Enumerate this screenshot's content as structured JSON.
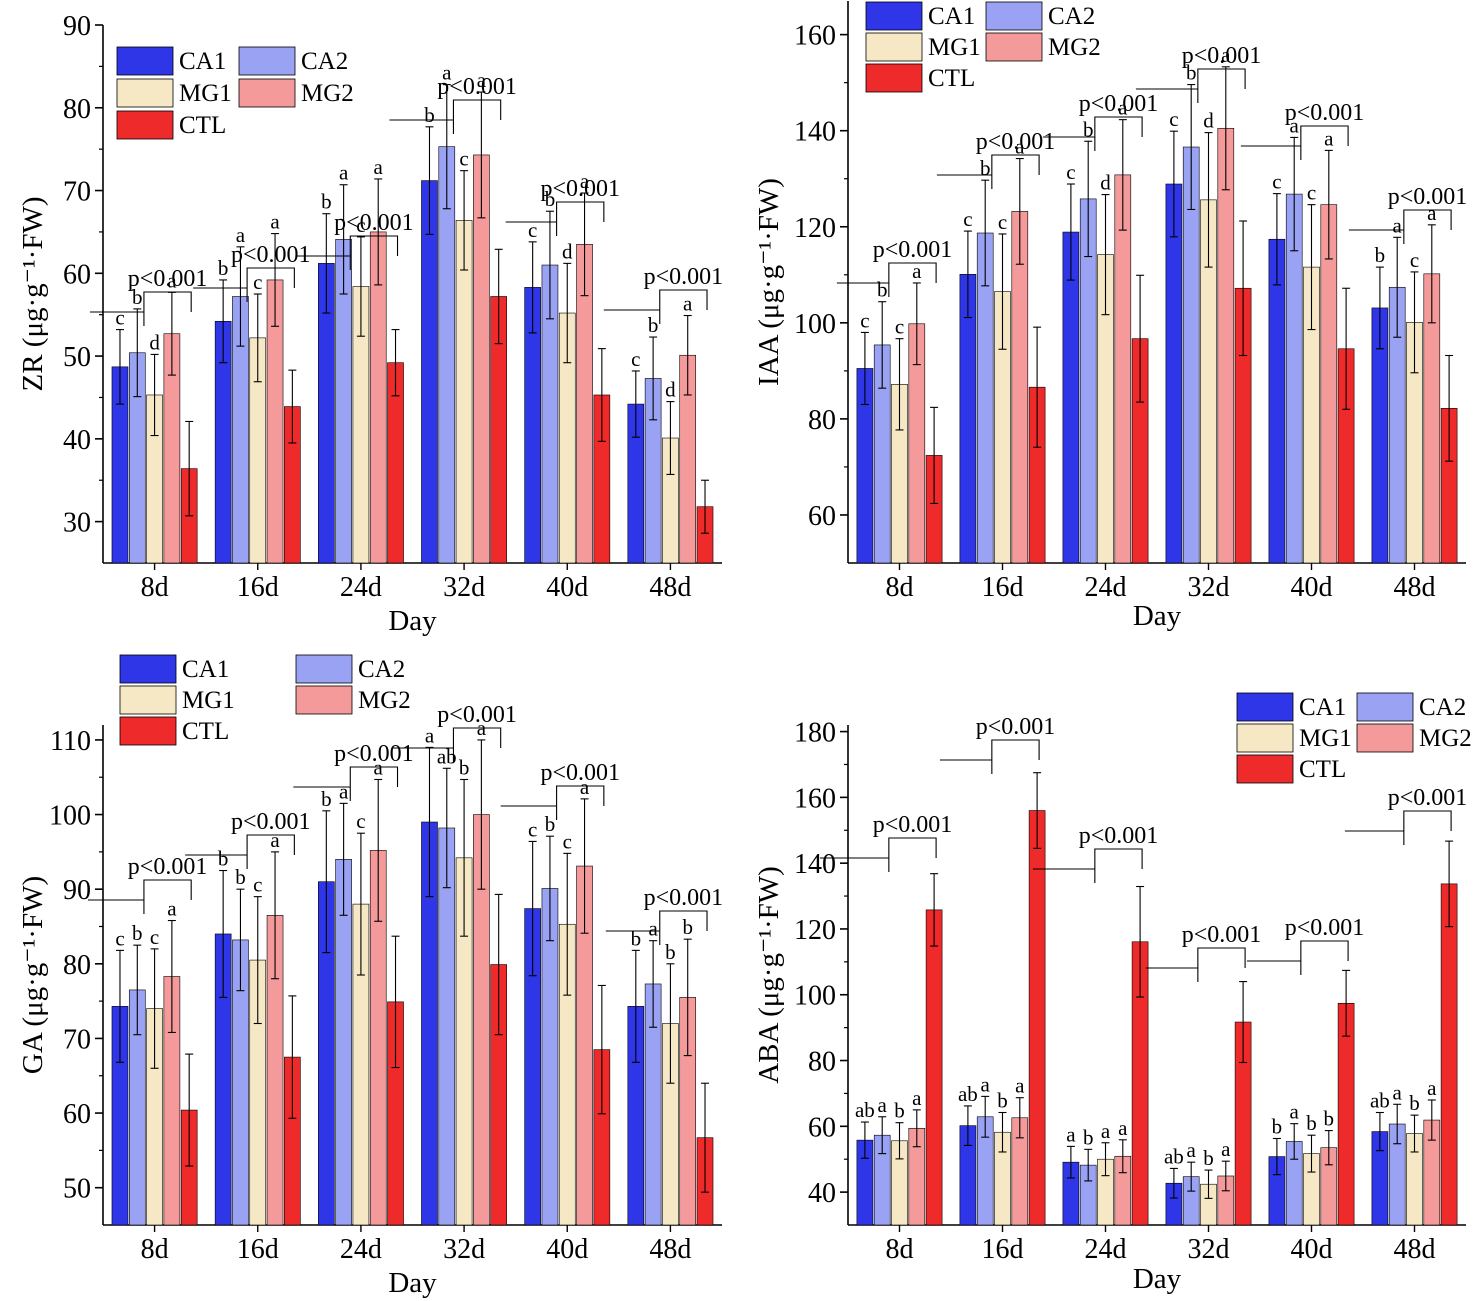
{
  "colors": {
    "CA1": "#2e36e8",
    "CA2": "#9aa2f4",
    "MG1": "#f6e8c4",
    "MG2": "#f49a9a",
    "CTL": "#ee2a2a"
  },
  "chart_data": [
    {
      "type": "bar",
      "ylabel": "ZR (μg·g⁻¹·FW)",
      "xlabel": "Day",
      "categories": [
        "8d",
        "16d",
        "24d",
        "32d",
        "40d",
        "48d"
      ],
      "ylim": [
        25,
        90
      ],
      "yticks": [
        30,
        40,
        50,
        60,
        70,
        80,
        90
      ],
      "legend": [
        "CA1",
        "CA2",
        "MG1",
        "MG2",
        "CTL"
      ],
      "series": [
        {
          "name": "CA1",
          "values": [
            48.7,
            54.2,
            61.2,
            71.2,
            58.3,
            44.2
          ],
          "errors": [
            4.5,
            5.0,
            6.0,
            6.5,
            5.5,
            4.0
          ],
          "labels": [
            "c",
            "b",
            "b",
            "b",
            "c",
            "c"
          ]
        },
        {
          "name": "CA2",
          "values": [
            50.4,
            57.2,
            64.1,
            75.3,
            61.0,
            47.3
          ],
          "errors": [
            5.3,
            6.0,
            6.6,
            7.5,
            6.5,
            5.0
          ],
          "labels": [
            "b",
            "a",
            "a",
            "a",
            "b",
            "b"
          ]
        },
        {
          "name": "MG1",
          "values": [
            45.3,
            52.2,
            58.4,
            66.4,
            55.2,
            40.1
          ],
          "errors": [
            4.9,
            5.3,
            6.0,
            6.0,
            6.0,
            4.4
          ],
          "labels": [
            "d",
            "c",
            "c",
            "c",
            "d",
            "d"
          ]
        },
        {
          "name": "MG2",
          "values": [
            52.7,
            59.2,
            65.0,
            74.3,
            63.5,
            50.1
          ],
          "errors": [
            5.0,
            5.6,
            6.4,
            7.6,
            6.2,
            4.8
          ],
          "labels": [
            "a",
            "a",
            "a",
            "a",
            "a",
            "a"
          ]
        },
        {
          "name": "CTL",
          "values": [
            36.4,
            43.9,
            49.2,
            57.2,
            45.3,
            31.8
          ],
          "errors": [
            5.7,
            4.4,
            4.0,
            5.7,
            5.6,
            3.2
          ],
          "labels": [
            "",
            "",
            "",
            "",
            "",
            ""
          ]
        }
      ],
      "pvalue": "p<0.001"
    },
    {
      "type": "bar",
      "ylabel": "IAA (μg·g⁻¹·FW)",
      "xlabel": "Day",
      "categories": [
        "8d",
        "16d",
        "24d",
        "32d",
        "40d",
        "48d"
      ],
      "ylim": [
        50,
        167
      ],
      "yticks": [
        60,
        80,
        100,
        120,
        140,
        160
      ],
      "legend": [
        "CA1",
        "CA2",
        "MG1",
        "MG2",
        "CTL"
      ],
      "series": [
        {
          "name": "CA1",
          "values": [
            90.5,
            110.1,
            118.9,
            128.9,
            117.4,
            103.1
          ],
          "errors": [
            7.5,
            9.0,
            10.0,
            11.0,
            9.5,
            8.5
          ],
          "labels": [
            "c",
            "c",
            "c",
            "c",
            "c",
            "b"
          ]
        },
        {
          "name": "CA2",
          "values": [
            95.4,
            118.7,
            125.8,
            136.6,
            126.8,
            107.4
          ],
          "errors": [
            9.0,
            11.0,
            12.0,
            13.0,
            11.8,
            10.4
          ],
          "labels": [
            "b",
            "b",
            "b",
            "b",
            "a",
            "a"
          ]
        },
        {
          "name": "MG1",
          "values": [
            87.2,
            106.5,
            114.2,
            125.6,
            111.6,
            100.1
          ],
          "errors": [
            9.5,
            12.0,
            12.5,
            14.0,
            13.0,
            10.5
          ],
          "labels": [
            "c",
            "c",
            "d",
            "d",
            "c",
            "c"
          ]
        },
        {
          "name": "MG2",
          "values": [
            99.8,
            123.2,
            130.8,
            140.5,
            124.6,
            110.2
          ],
          "errors": [
            8.5,
            11.0,
            11.5,
            12.8,
            11.3,
            10.2
          ],
          "labels": [
            "a",
            "a",
            "a",
            "a",
            "a",
            "a"
          ]
        },
        {
          "name": "CTL",
          "values": [
            72.4,
            86.6,
            96.7,
            107.2,
            94.6,
            82.2
          ],
          "errors": [
            10.0,
            12.5,
            13.2,
            14.0,
            12.6,
            11.0
          ],
          "labels": [
            "",
            "",
            "",
            "",
            "",
            ""
          ]
        }
      ],
      "pvalue": "p<0.001"
    },
    {
      "type": "bar",
      "ylabel": "GA (μg·g⁻¹·FW)",
      "xlabel": "Day",
      "categories": [
        "8d",
        "16d",
        "24d",
        "32d",
        "40d",
        "48d"
      ],
      "ylim": [
        45,
        112
      ],
      "yticks": [
        50,
        60,
        70,
        80,
        90,
        100,
        110
      ],
      "legend": [
        "CA1",
        "CA2",
        "MG1",
        "MG2",
        "CTL"
      ],
      "series": [
        {
          "name": "CA1",
          "values": [
            74.3,
            84.0,
            91.0,
            99.0,
            87.4,
            74.3
          ],
          "errors": [
            7.5,
            8.5,
            9.5,
            10.0,
            9.0,
            7.5
          ],
          "labels": [
            "c",
            "b",
            "b",
            "a",
            "c",
            "b"
          ]
        },
        {
          "name": "CA2",
          "values": [
            76.5,
            83.2,
            94.0,
            98.2,
            90.1,
            77.3
          ],
          "errors": [
            6.0,
            6.8,
            7.5,
            8.0,
            7.0,
            5.8
          ],
          "labels": [
            "b",
            "b",
            "a",
            "ab",
            "b",
            "a"
          ]
        },
        {
          "name": "MG1",
          "values": [
            74.0,
            80.5,
            88.0,
            94.2,
            85.3,
            72.0
          ],
          "errors": [
            8.0,
            8.5,
            9.5,
            10.5,
            9.5,
            8.0
          ],
          "labels": [
            "c",
            "c",
            "c",
            "b",
            "c",
            "b"
          ]
        },
        {
          "name": "MG2",
          "values": [
            78.3,
            86.5,
            95.2,
            100.0,
            93.1,
            75.5
          ],
          "errors": [
            7.5,
            8.5,
            9.5,
            10.0,
            9.0,
            7.8
          ],
          "labels": [
            "a",
            "a",
            "a",
            "a",
            "a",
            "b"
          ]
        },
        {
          "name": "CTL",
          "values": [
            60.4,
            67.5,
            74.9,
            79.9,
            68.5,
            56.7
          ],
          "errors": [
            7.5,
            8.2,
            8.8,
            9.4,
            8.6,
            7.3
          ],
          "labels": [
            "",
            "",
            "",
            "",
            "",
            ""
          ]
        }
      ],
      "pvalue": "p<0.001"
    },
    {
      "type": "bar",
      "ylabel": "ABA (μg·g⁻¹·FW)",
      "xlabel": "Day",
      "categories": [
        "8d",
        "16d",
        "24d",
        "32d",
        "40d",
        "48d"
      ],
      "ylim": [
        30,
        182
      ],
      "yticks": [
        40,
        60,
        80,
        100,
        120,
        140,
        160,
        180
      ],
      "legend": [
        "CA1",
        "CA2",
        "MG1",
        "MG2",
        "CTL"
      ],
      "series": [
        {
          "name": "CA1",
          "values": [
            55.8,
            60.2,
            49.1,
            42.7,
            50.8,
            58.4
          ],
          "errors": [
            5.5,
            6.0,
            4.8,
            4.5,
            5.5,
            5.8
          ],
          "labels": [
            "ab",
            "ab",
            "a",
            "ab",
            "b",
            "ab"
          ]
        },
        {
          "name": "CA2",
          "values": [
            57.3,
            62.9,
            48.2,
            44.7,
            55.4,
            60.7
          ],
          "errors": [
            5.6,
            6.2,
            4.8,
            4.4,
            5.4,
            6.0
          ],
          "labels": [
            "a",
            "a",
            "b",
            "a",
            "a",
            "a"
          ]
        },
        {
          "name": "MG1",
          "values": [
            55.6,
            58.2,
            50.0,
            42.4,
            51.7,
            57.8
          ],
          "errors": [
            5.5,
            6.0,
            5.0,
            4.3,
            5.6,
            5.6
          ],
          "labels": [
            "b",
            "b",
            "a",
            "b",
            "b",
            "b"
          ]
        },
        {
          "name": "MG2",
          "values": [
            59.4,
            62.6,
            50.9,
            44.9,
            53.5,
            61.9
          ],
          "errors": [
            5.6,
            6.1,
            5.0,
            4.5,
            5.2,
            6.1
          ],
          "labels": [
            "a",
            "a",
            "a",
            "a",
            "b",
            "a"
          ]
        },
        {
          "name": "CTL",
          "values": [
            125.8,
            156.0,
            116.1,
            91.7,
            97.4,
            133.7
          ],
          "errors": [
            11.0,
            11.5,
            16.8,
            12.3,
            10.0,
            13.0
          ],
          "labels": [
            "",
            "",
            "",
            "",
            "",
            ""
          ]
        }
      ],
      "pvalue": "p<0.001"
    }
  ]
}
